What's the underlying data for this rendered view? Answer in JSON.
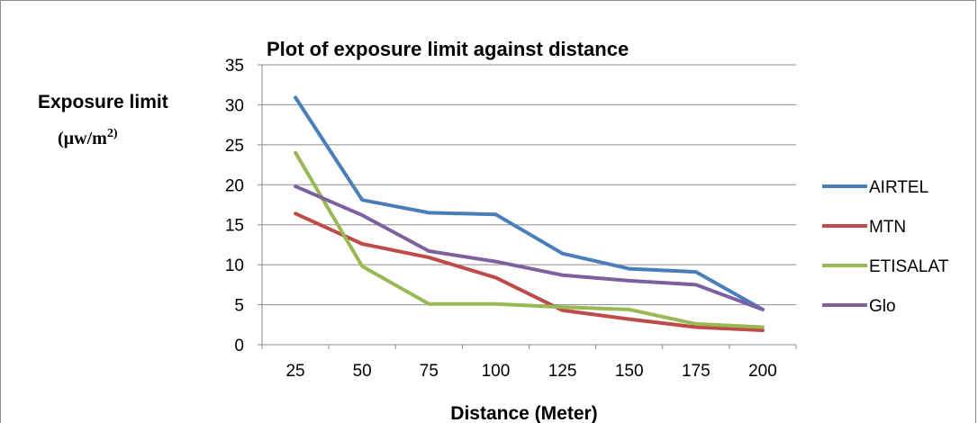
{
  "chart_data": {
    "type": "line",
    "title": "Plot of exposure limit  against distance",
    "xlabel": "Distance (Meter)",
    "ylabel": "Exposure limit",
    "ylabel_unit": "(µw/m",
    "ylabel_unit_sup": "2)",
    "categories": [
      "25",
      "50",
      "75",
      "100",
      "125",
      "150",
      "175",
      "200"
    ],
    "ylim": [
      0,
      35
    ],
    "yticks": [
      "0",
      "5",
      "10",
      "15",
      "20",
      "25",
      "30",
      "35"
    ],
    "grid": true,
    "legend_position": "right",
    "series": [
      {
        "name": "AIRTEL",
        "color": "#4a7ebb",
        "values": [
          30.9,
          18.1,
          16.5,
          16.3,
          11.4,
          9.5,
          9.1,
          4.4
        ]
      },
      {
        "name": "MTN",
        "color": "#be4b48",
        "values": [
          16.4,
          12.6,
          10.9,
          8.4,
          4.3,
          3.2,
          2.2,
          1.8
        ]
      },
      {
        "name": "ETISALAT",
        "color": "#98b954",
        "values": [
          24.0,
          9.8,
          5.1,
          5.1,
          4.7,
          4.4,
          2.6,
          2.2
        ]
      },
      {
        "name": "Glo",
        "color": "#7d60a0",
        "values": [
          19.8,
          16.2,
          11.7,
          10.4,
          8.7,
          8.0,
          7.5,
          4.4
        ]
      }
    ]
  }
}
